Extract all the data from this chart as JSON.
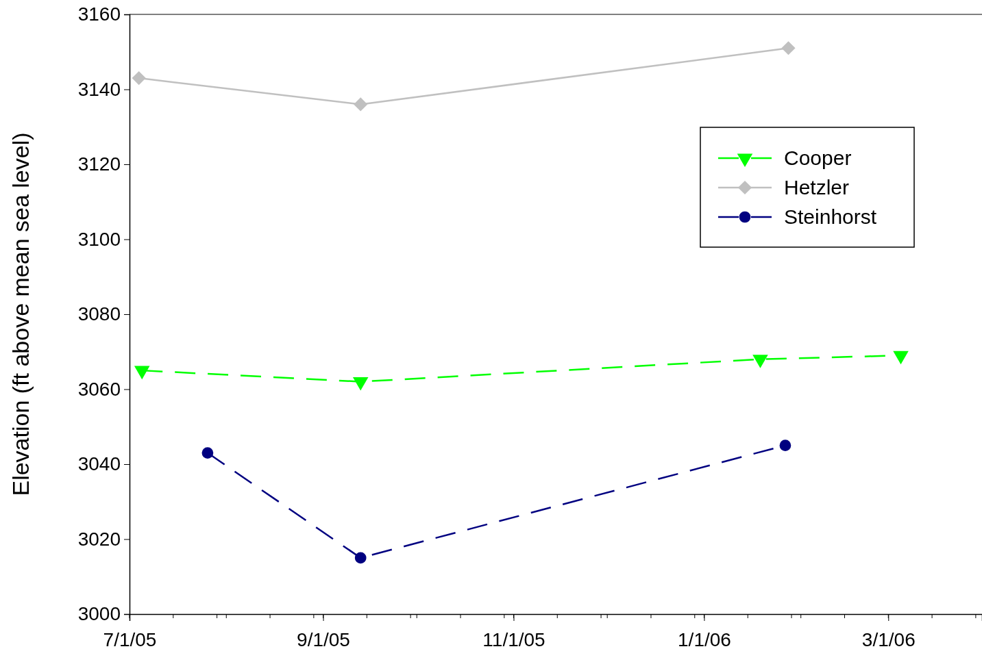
{
  "chart_data": {
    "type": "line",
    "ylabel": "Elevation (ft above mean sea level)",
    "xlim": [
      "2005-07-01",
      "2006-03-31"
    ],
    "xticks": [
      {
        "value": "2005-07-01",
        "label": "7/1/05"
      },
      {
        "value": "2005-09-01",
        "label": "9/1/05"
      },
      {
        "value": "2005-11-01",
        "label": "11/1/05"
      },
      {
        "value": "2006-01-01",
        "label": "1/1/06"
      },
      {
        "value": "2006-03-01",
        "label": "3/1/06"
      }
    ],
    "ylim": [
      3000,
      3160
    ],
    "yticks": [
      3000,
      3020,
      3040,
      3060,
      3080,
      3100,
      3120,
      3140,
      3160
    ],
    "grid": false,
    "legend": "top right",
    "series": [
      {
        "name": "Cooper",
        "color": "#00ff00",
        "marker": "triangle",
        "line_style": "dashed",
        "x": [
          "2005-07-05",
          "2005-09-13",
          "2006-01-19",
          "2006-03-05"
        ],
        "values": [
          3065,
          3062,
          3068,
          3069
        ]
      },
      {
        "name": "Hetzler",
        "color": "#c0c0c0",
        "marker": "diamond",
        "line_style": "solid",
        "x": [
          "2005-07-04",
          "2005-09-13",
          "2006-01-28"
        ],
        "values": [
          3143,
          3136,
          3151
        ]
      },
      {
        "name": "Steinhorst",
        "color": "#000080",
        "marker": "circle",
        "line_style": "dashed",
        "x": [
          "2005-07-26",
          "2005-09-13",
          "2006-01-27"
        ],
        "values": [
          3043,
          3015,
          3045
        ]
      }
    ]
  }
}
